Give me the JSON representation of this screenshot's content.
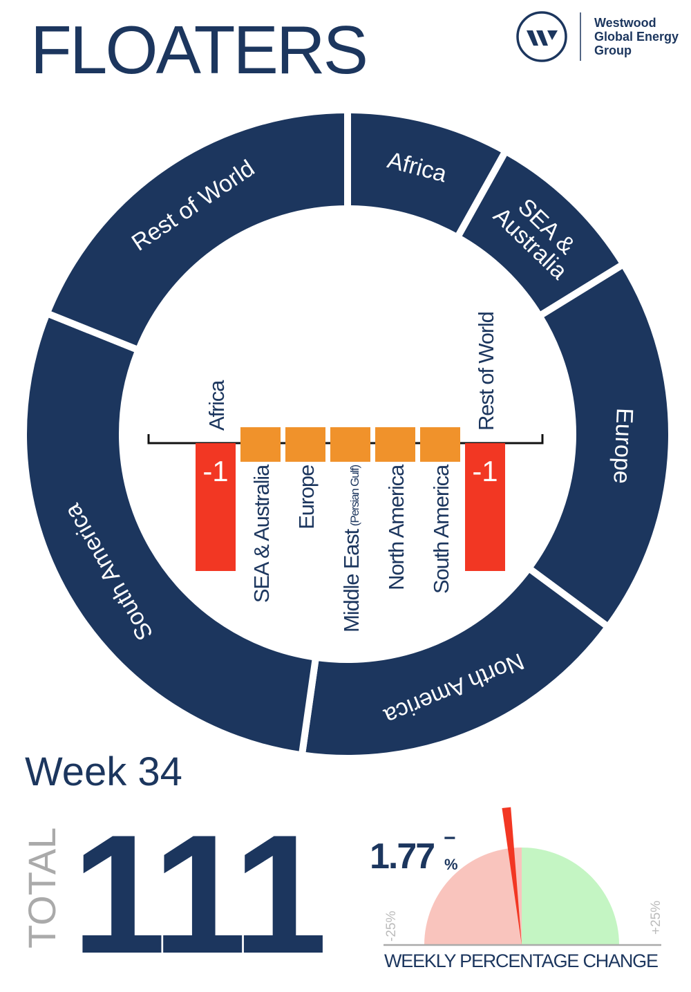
{
  "title": "FLOATERS",
  "logo": {
    "lines": [
      "Westwood",
      "Global Energy",
      "Group"
    ],
    "mark": "W"
  },
  "colors": {
    "navy": "#1c365e",
    "orange": "#f0922b",
    "red": "#f23723",
    "gauge_negative": "#f9c4bd",
    "gauge_positive": "#c4f5c3",
    "grey": "#aaaaaa"
  },
  "week_label": "Week 34",
  "total_label": "TOTAL",
  "total_value": "111",
  "chart_data": [
    {
      "type": "pie",
      "variant": "donut",
      "categories": [
        "Africa",
        "SEA & Australia",
        "Europe",
        "North America",
        "South America",
        "Rest of World"
      ],
      "labels": [
        "Africa",
        "SEA &|Australia",
        "Europe",
        "North America",
        "South America",
        "Rest of World"
      ],
      "values": [
        9,
        9,
        21,
        19,
        32,
        21
      ]
    },
    {
      "type": "bar",
      "title": "",
      "categories": [
        "Africa",
        "SEA & Australia",
        "Europe",
        "Middle East",
        "North America",
        "South America",
        "Rest of World"
      ],
      "category_notes": [
        "",
        "",
        "",
        "(Persian Gulf)",
        "",
        "",
        ""
      ],
      "values": [
        -1,
        0,
        0,
        0,
        0,
        0,
        -1
      ],
      "data_labels": [
        "-1",
        "",
        "",
        "",
        "",
        "",
        "-1"
      ]
    },
    {
      "type": "gauge",
      "value": -1.77,
      "value_label": "1.77",
      "sign": "−",
      "unit": "%",
      "range": [
        -25,
        25
      ],
      "min_label": "-25%",
      "max_label": "+25%",
      "caption": "WEEKLY PERCENTAGE CHANGE"
    }
  ]
}
